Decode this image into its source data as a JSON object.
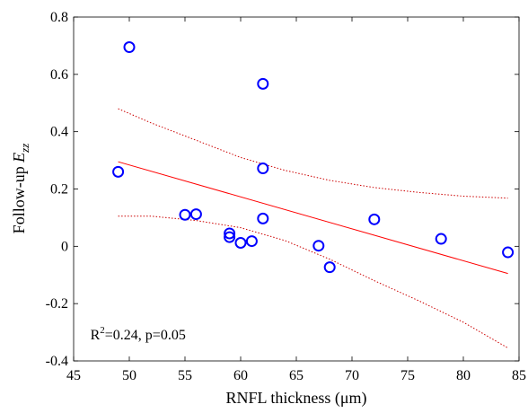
{
  "chart_data": {
    "type": "scatter",
    "xlabel": "RNFL thickness (μm)",
    "ylabel_prefix": "Follow-up ",
    "ylabel_var": "E",
    "ylabel_sub": "zz",
    "xlim": [
      45,
      85
    ],
    "ylim": [
      -0.4,
      0.8
    ],
    "xticks": [
      45,
      50,
      55,
      60,
      65,
      70,
      75,
      80,
      85
    ],
    "yticks": [
      -0.4,
      -0.2,
      0,
      0.2,
      0.4,
      0.6,
      0.8
    ],
    "ytick_labels": [
      "-0.4",
      "-0.2",
      "0",
      "0.2",
      "0.4",
      "0.6",
      "0.8"
    ],
    "grid": false,
    "series": [
      {
        "color": "#0000ff",
        "points": [
          {
            "x": 49,
            "y": 0.26
          },
          {
            "x": 50,
            "y": 0.695
          },
          {
            "x": 55,
            "y": 0.11
          },
          {
            "x": 56,
            "y": 0.112
          },
          {
            "x": 59,
            "y": 0.045
          },
          {
            "x": 59,
            "y": 0.032
          },
          {
            "x": 60,
            "y": 0.012
          },
          {
            "x": 61,
            "y": 0.018
          },
          {
            "x": 62,
            "y": 0.567
          },
          {
            "x": 62,
            "y": 0.272
          },
          {
            "x": 62,
            "y": 0.097
          },
          {
            "x": 67,
            "y": 0.002
          },
          {
            "x": 68,
            "y": -0.073
          },
          {
            "x": 72,
            "y": 0.094
          },
          {
            "x": 78,
            "y": 0.026
          },
          {
            "x": 84,
            "y": -0.021
          }
        ]
      }
    ],
    "fit_line": {
      "color": "#ff0000",
      "points": [
        {
          "x": 49,
          "y": 0.295
        },
        {
          "x": 84,
          "y": -0.095
        }
      ]
    },
    "confidence_upper": {
      "color": "#cc0000",
      "points": [
        {
          "x": 49,
          "y": 0.48
        },
        {
          "x": 52,
          "y": 0.43
        },
        {
          "x": 56,
          "y": 0.37
        },
        {
          "x": 60,
          "y": 0.31
        },
        {
          "x": 64,
          "y": 0.265
        },
        {
          "x": 68,
          "y": 0.23
        },
        {
          "x": 72,
          "y": 0.205
        },
        {
          "x": 76,
          "y": 0.188
        },
        {
          "x": 80,
          "y": 0.175
        },
        {
          "x": 84,
          "y": 0.168
        }
      ]
    },
    "confidence_lower": {
      "color": "#cc0000",
      "points": [
        {
          "x": 49,
          "y": 0.105
        },
        {
          "x": 52,
          "y": 0.105
        },
        {
          "x": 56,
          "y": 0.09
        },
        {
          "x": 60,
          "y": 0.065
        },
        {
          "x": 64,
          "y": 0.02
        },
        {
          "x": 68,
          "y": -0.045
        },
        {
          "x": 72,
          "y": -0.12
        },
        {
          "x": 76,
          "y": -0.19
        },
        {
          "x": 80,
          "y": -0.265
        },
        {
          "x": 84,
          "y": -0.355
        }
      ]
    },
    "annotation": {
      "prefix": "R",
      "sup": "2",
      "text": "=0.24, p=0.05",
      "x": 46.5,
      "y": -0.325
    }
  }
}
